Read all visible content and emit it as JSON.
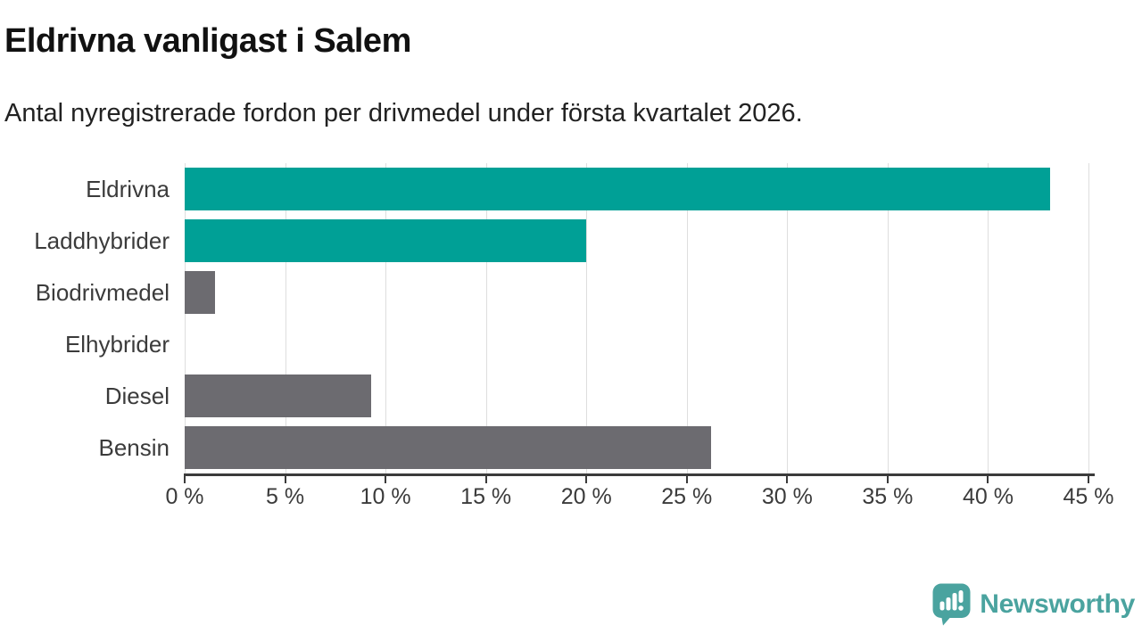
{
  "header": {
    "title": "Eldrivna vanligast i Salem",
    "subtitle": "Antal nyregistrerade fordon per drivmedel under första kvartalet 2026."
  },
  "chart_data": {
    "type": "bar",
    "orientation": "horizontal",
    "title": "Eldrivna vanligast i Salem",
    "subtitle": "Antal nyregistrerade fordon per drivmedel under första kvartalet 2026.",
    "categories": [
      "Eldrivna",
      "Laddhybrider",
      "Biodrivmedel",
      "Elhybrider",
      "Diesel",
      "Bensin"
    ],
    "values": [
      43.1,
      20.0,
      1.5,
      0,
      9.3,
      26.2
    ],
    "bar_colors": [
      "#00a096",
      "#00a096",
      "#6c6b70",
      "#6c6b70",
      "#6c6b70",
      "#6c6b70"
    ],
    "xlabel": "",
    "ylabel": "",
    "xlim": [
      0,
      45
    ],
    "x_ticks": [
      0,
      5,
      10,
      15,
      20,
      25,
      30,
      35,
      40,
      45
    ],
    "x_tick_suffix": " %",
    "grid": true,
    "legend_position": "none"
  },
  "colors": {
    "series_teal": "#00a096",
    "series_gray": "#6c6b70",
    "axis": "#3b3b3b",
    "gridline": "#dedede",
    "tick_text": "#3b3b3b",
    "label_text": "#3b3b3b",
    "logo_teal": "#4aa39f"
  },
  "footer": {
    "brand": "Newsworthy"
  },
  "icons": {
    "brand_icon": "newsworthy-speech-bubble-chart-icon"
  }
}
